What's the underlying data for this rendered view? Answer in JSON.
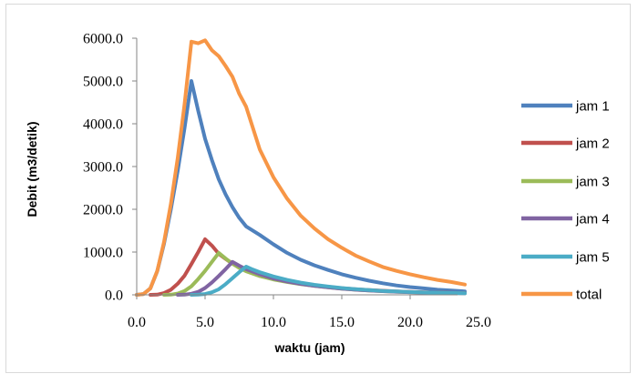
{
  "chart_data": {
    "type": "line",
    "title": "",
    "xlabel": "waktu (jam)",
    "ylabel": "Debit  (m3/detik)",
    "xlim": [
      0,
      25
    ],
    "ylim": [
      0,
      6000
    ],
    "x_ticks": [
      "0.0",
      "5.0",
      "10.0",
      "15.0",
      "20.0",
      "25.0"
    ],
    "y_ticks": [
      "0.0",
      "1000.0",
      "2000.0",
      "3000.0",
      "4000.0",
      "5000.0",
      "6000.0"
    ],
    "grid": false,
    "legend_position": "right",
    "series": [
      {
        "name": "jam 1",
        "color": "#4f81bd",
        "points": [
          [
            0,
            0
          ],
          [
            0.5,
            20
          ],
          [
            1,
            150
          ],
          [
            1.5,
            550
          ],
          [
            2,
            1200
          ],
          [
            2.5,
            2000
          ],
          [
            3,
            2900
          ],
          [
            3.5,
            3900
          ],
          [
            4,
            5000
          ],
          [
            4.5,
            4300
          ],
          [
            5,
            3650
          ],
          [
            5.5,
            3150
          ],
          [
            6,
            2700
          ],
          [
            6.5,
            2350
          ],
          [
            7,
            2050
          ],
          [
            7.5,
            1800
          ],
          [
            8,
            1600
          ],
          [
            9,
            1400
          ],
          [
            10,
            1180
          ],
          [
            11,
            980
          ],
          [
            12,
            820
          ],
          [
            13,
            690
          ],
          [
            14,
            580
          ],
          [
            15,
            480
          ],
          [
            16,
            400
          ],
          [
            17,
            330
          ],
          [
            18,
            270
          ],
          [
            19,
            220
          ],
          [
            20,
            180
          ],
          [
            21,
            150
          ],
          [
            22,
            120
          ],
          [
            23,
            100
          ],
          [
            24,
            80
          ]
        ]
      },
      {
        "name": "jam 2",
        "color": "#c0504d",
        "points": [
          [
            1,
            0
          ],
          [
            1.5,
            5
          ],
          [
            2,
            40
          ],
          [
            2.5,
            120
          ],
          [
            3,
            260
          ],
          [
            3.5,
            450
          ],
          [
            4,
            720
          ],
          [
            4.5,
            1000
          ],
          [
            5,
            1300
          ],
          [
            5.5,
            1150
          ],
          [
            6,
            960
          ],
          [
            6.5,
            840
          ],
          [
            7,
            730
          ],
          [
            7.5,
            640
          ],
          [
            8,
            560
          ],
          [
            9,
            440
          ],
          [
            10,
            370
          ],
          [
            11,
            310
          ],
          [
            12,
            260
          ],
          [
            13,
            220
          ],
          [
            14,
            185
          ],
          [
            15,
            155
          ],
          [
            16,
            130
          ],
          [
            17,
            110
          ],
          [
            18,
            95
          ],
          [
            19,
            80
          ],
          [
            20,
            70
          ],
          [
            21,
            60
          ],
          [
            22,
            52
          ],
          [
            23,
            45
          ],
          [
            24,
            40
          ]
        ]
      },
      {
        "name": "jam 3",
        "color": "#9bbb59",
        "points": [
          [
            2,
            0
          ],
          [
            2.5,
            5
          ],
          [
            3,
            30
          ],
          [
            3.5,
            90
          ],
          [
            4,
            200
          ],
          [
            4.5,
            370
          ],
          [
            5,
            560
          ],
          [
            5.5,
            770
          ],
          [
            6,
            980
          ],
          [
            6.5,
            850
          ],
          [
            7,
            730
          ],
          [
            7.5,
            630
          ],
          [
            8,
            550
          ],
          [
            9,
            440
          ],
          [
            10,
            360
          ],
          [
            11,
            300
          ],
          [
            12,
            250
          ],
          [
            13,
            210
          ],
          [
            14,
            175
          ],
          [
            15,
            145
          ],
          [
            16,
            120
          ],
          [
            17,
            100
          ],
          [
            18,
            85
          ],
          [
            19,
            72
          ],
          [
            20,
            62
          ],
          [
            21,
            54
          ],
          [
            22,
            47
          ],
          [
            23,
            41
          ],
          [
            24,
            36
          ]
        ]
      },
      {
        "name": "jam 4",
        "color": "#8064a2",
        "points": [
          [
            3,
            0
          ],
          [
            3.5,
            5
          ],
          [
            4,
            25
          ],
          [
            4.5,
            70
          ],
          [
            5,
            160
          ],
          [
            5.5,
            290
          ],
          [
            6,
            440
          ],
          [
            6.5,
            600
          ],
          [
            7,
            770
          ],
          [
            7.5,
            680
          ],
          [
            8,
            600
          ],
          [
            9,
            480
          ],
          [
            10,
            380
          ],
          [
            11,
            310
          ],
          [
            12,
            255
          ],
          [
            13,
            210
          ],
          [
            14,
            175
          ],
          [
            15,
            145
          ],
          [
            16,
            120
          ],
          [
            17,
            100
          ],
          [
            18,
            85
          ],
          [
            19,
            72
          ],
          [
            20,
            62
          ],
          [
            21,
            54
          ],
          [
            22,
            47
          ],
          [
            23,
            41
          ],
          [
            24,
            36
          ]
        ]
      },
      {
        "name": "jam 5",
        "color": "#4bacc6",
        "points": [
          [
            4,
            0
          ],
          [
            4.5,
            5
          ],
          [
            5,
            20
          ],
          [
            5.5,
            60
          ],
          [
            6,
            130
          ],
          [
            6.5,
            250
          ],
          [
            7,
            390
          ],
          [
            7.5,
            530
          ],
          [
            8,
            660
          ],
          [
            8.5,
            590
          ],
          [
            9,
            530
          ],
          [
            10,
            430
          ],
          [
            11,
            350
          ],
          [
            12,
            285
          ],
          [
            13,
            235
          ],
          [
            14,
            195
          ],
          [
            15,
            160
          ],
          [
            16,
            132
          ],
          [
            17,
            110
          ],
          [
            18,
            92
          ],
          [
            19,
            78
          ],
          [
            20,
            66
          ],
          [
            21,
            56
          ],
          [
            22,
            48
          ],
          [
            23,
            42
          ],
          [
            24,
            36
          ]
        ]
      },
      {
        "name": "total",
        "color": "#f79646",
        "points": [
          [
            0,
            0
          ],
          [
            0.5,
            20
          ],
          [
            1,
            150
          ],
          [
            1.5,
            555
          ],
          [
            2,
            1240
          ],
          [
            2.5,
            2130
          ],
          [
            3,
            3200
          ],
          [
            3.5,
            4460
          ],
          [
            4,
            5920
          ],
          [
            4.5,
            5880
          ],
          [
            5,
            5950
          ],
          [
            5.5,
            5720
          ],
          [
            6,
            5580
          ],
          [
            6.5,
            5350
          ],
          [
            7,
            5100
          ],
          [
            7.5,
            4700
          ],
          [
            8,
            4400
          ],
          [
            9,
            3400
          ],
          [
            10,
            2750
          ],
          [
            11,
            2250
          ],
          [
            12,
            1850
          ],
          [
            13,
            1550
          ],
          [
            14,
            1300
          ],
          [
            15,
            1100
          ],
          [
            16,
            920
          ],
          [
            17,
            780
          ],
          [
            18,
            650
          ],
          [
            19,
            560
          ],
          [
            20,
            480
          ],
          [
            21,
            410
          ],
          [
            22,
            350
          ],
          [
            23,
            300
          ],
          [
            24,
            240
          ]
        ]
      }
    ]
  }
}
